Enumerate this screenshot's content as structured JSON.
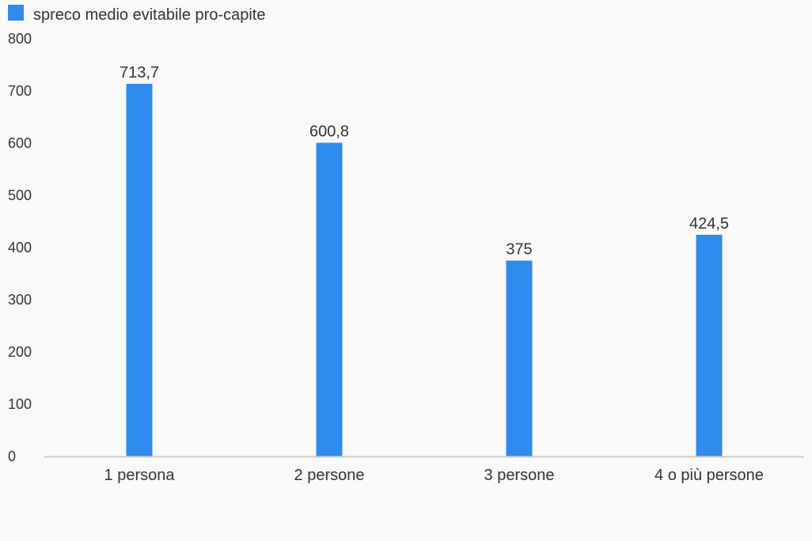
{
  "chart_data": {
    "type": "bar",
    "categories": [
      "1 persona",
      "2 persone",
      "3 persone",
      "4 o più persone"
    ],
    "series": [
      {
        "name": "spreco medio evitabile pro-capite",
        "values": [
          713.7,
          600.8,
          375,
          424.5
        ],
        "value_labels": [
          "713,7",
          "600,8",
          "375",
          "424,5"
        ]
      }
    ],
    "ylim": [
      0,
      800
    ],
    "yticks": [
      0,
      100,
      200,
      300,
      400,
      500,
      600,
      700,
      800
    ],
    "grid": false,
    "legend": "top-left"
  },
  "colors": {
    "bar": "#2f8bec",
    "axis": "#cccccc",
    "text": "#333333",
    "background": "#f9f9f9"
  }
}
